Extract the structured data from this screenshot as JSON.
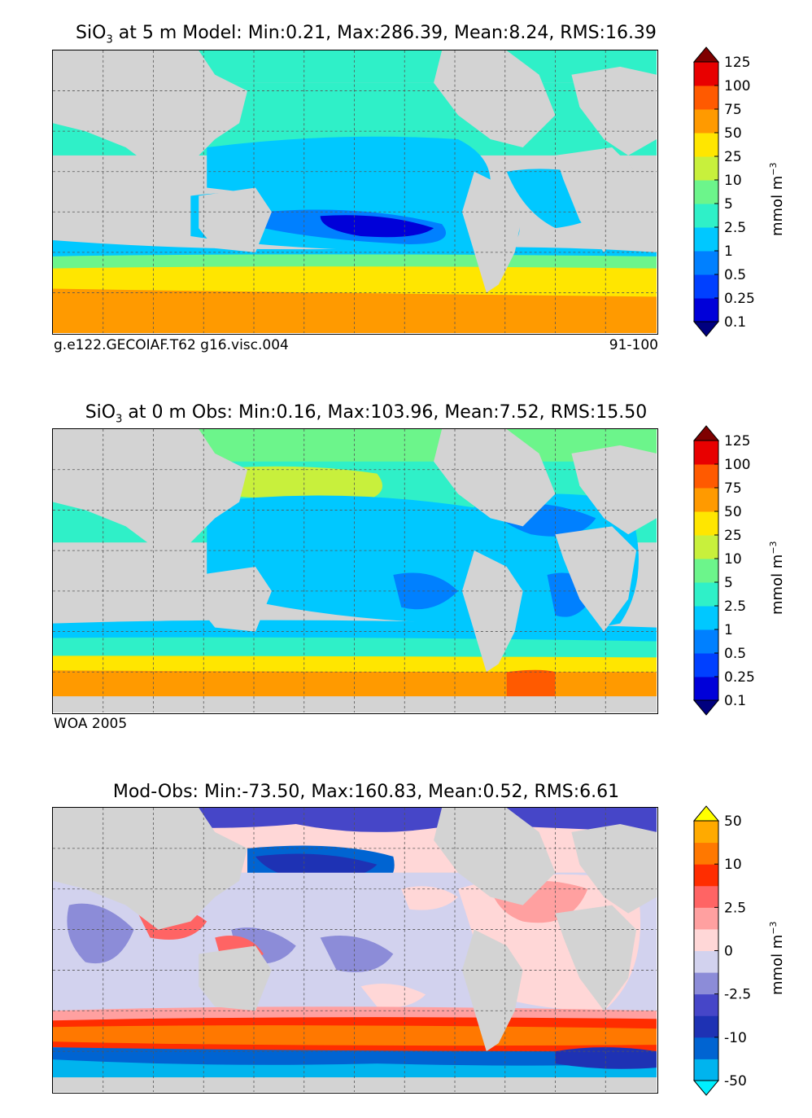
{
  "panels": [
    {
      "title_prefix": "SiO",
      "title_sub": "3",
      "title_suffix": " at 5 m Model: Min:0.21, Max:286.39, Mean:8.24, RMS:16.39",
      "note_left": "g.e122.GECOIAF.T62 g16.visc.004",
      "note_right": "91-100"
    },
    {
      "title_prefix": "SiO",
      "title_sub": "3",
      "title_suffix": " at 0 m Obs: Min:0.16, Max:103.96, Mean:7.52, RMS:15.50",
      "note_left": "WOA 2005",
      "note_right": ""
    },
    {
      "title_prefix": "",
      "title_sub": "",
      "title_suffix": "Mod-Obs: Min:-73.50, Max:160.83, Mean:0.52, RMS:6.61",
      "note_left": "",
      "note_right": ""
    }
  ],
  "units": {
    "base": "mmol m",
    "sup": "−3"
  },
  "chart_data": [
    {
      "type": "heatmap",
      "title": "SiO3 at 5 m Model: Min:0.21, Max:286.39, Mean:8.24, RMS:16.39",
      "variable": "SiO3 concentration (model, 5 m)",
      "stats": {
        "min": 0.21,
        "max": 286.39,
        "mean": 8.24,
        "rms": 16.39
      },
      "colorbar": {
        "levels": [
          0.1,
          0.25,
          0.5,
          1,
          2.5,
          5,
          10,
          25,
          50,
          75,
          100,
          125
        ],
        "tick_labels": [
          "0.1",
          "0.25",
          "0.5",
          "1",
          "2.5",
          "5",
          "10",
          "25",
          "50",
          "75",
          "100",
          "125"
        ],
        "colors": [
          "#00007f",
          "#0000d9",
          "#0040ff",
          "#0080ff",
          "#00c8ff",
          "#2ff0c8",
          "#6cf58b",
          "#c8f03c",
          "#ffe600",
          "#ff9a00",
          "#ff5a00",
          "#e80000",
          "#7f0000"
        ],
        "units": "mmol m-3",
        "extend": "both"
      }
    },
    {
      "type": "heatmap",
      "title": "SiO3 at 0 m Obs: Min:0.16, Max:103.96, Mean:7.52, RMS:15.50",
      "variable": "SiO3 concentration (WOA 2005 observations, 0 m)",
      "stats": {
        "min": 0.16,
        "max": 103.96,
        "mean": 7.52,
        "rms": 15.5
      },
      "colorbar": {
        "levels": [
          0.1,
          0.25,
          0.5,
          1,
          2.5,
          5,
          10,
          25,
          50,
          75,
          100,
          125
        ],
        "tick_labels": [
          "0.1",
          "0.25",
          "0.5",
          "1",
          "2.5",
          "5",
          "10",
          "25",
          "50",
          "75",
          "100",
          "125"
        ],
        "colors": [
          "#00007f",
          "#0000d9",
          "#0040ff",
          "#0080ff",
          "#00c8ff",
          "#2ff0c8",
          "#6cf58b",
          "#c8f03c",
          "#ffe600",
          "#ff9a00",
          "#ff5a00",
          "#e80000",
          "#7f0000"
        ],
        "units": "mmol m-3",
        "extend": "both"
      }
    },
    {
      "type": "heatmap",
      "title": "Mod-Obs: Min:-73.50, Max:160.83, Mean:0.52, RMS:6.61",
      "variable": "SiO3 difference (model minus observations)",
      "stats": {
        "min": -73.5,
        "max": 160.83,
        "mean": 0.52,
        "rms": 6.61
      },
      "colorbar": {
        "levels": [
          -50,
          -25,
          -10,
          -5,
          -2.5,
          -1,
          0,
          1,
          2.5,
          5,
          10,
          25,
          50
        ],
        "tick_labels": [
          "-50",
          "-10",
          "-2.5",
          "0",
          "2.5",
          "10",
          "50"
        ],
        "tick_label_values": [
          -50,
          -10,
          -2.5,
          0,
          2.5,
          10,
          50
        ],
        "colors": [
          "#00f0ff",
          "#00b4ee",
          "#0064d2",
          "#1e32b4",
          "#4646c8",
          "#8c8cd8",
          "#d2d2ee",
          "#ffd7d7",
          "#ffa0a0",
          "#ff6464",
          "#ff2d00",
          "#ff7800",
          "#ffaa00",
          "#ffff00"
        ],
        "units": "mmol m-3",
        "extend": "both"
      }
    }
  ]
}
